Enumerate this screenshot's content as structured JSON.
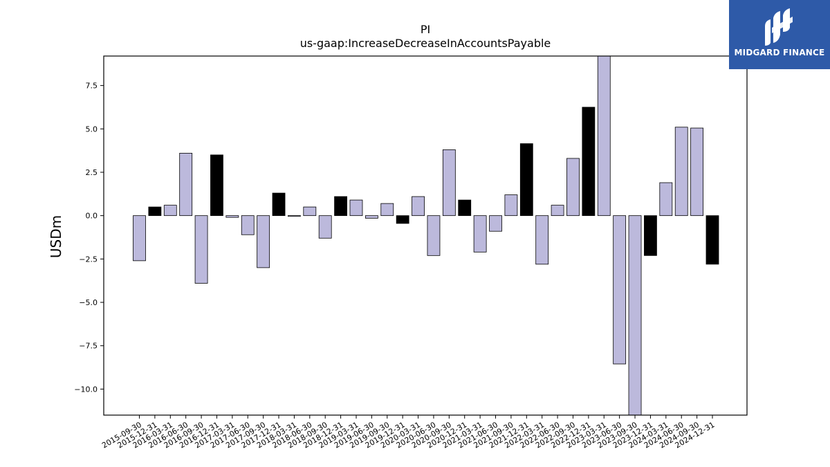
{
  "brand": {
    "name": "MIDGARD FINANCE",
    "logo_icon": "midgard-m-logo-icon",
    "background_color": "#2e5aa8"
  },
  "chart_data": {
    "type": "bar",
    "title": "PI",
    "subtitle": "us-gaap:IncreaseDecreaseInAccountsPayable",
    "xlabel": "",
    "ylabel": "USDm",
    "ylim": [
      -11.5,
      9.2
    ],
    "yticks": [
      7.5,
      5.0,
      2.5,
      0.0,
      -2.5,
      -5.0,
      -7.5,
      -10.0
    ],
    "ytick_labels": [
      "7.5",
      "5.0",
      "2.5",
      "0.0",
      "−2.5",
      "−5.0",
      "−7.5",
      "−10.0"
    ],
    "grid": false,
    "legend": "none",
    "colors": {
      "quarter": "#bcb9dc",
      "year_end": "#000000",
      "edge": "#000000"
    },
    "categories": [
      "2015-09-30",
      "2015-12-31",
      "2016-03-31",
      "2016-06-30",
      "2016-09-30",
      "2016-12-31",
      "2017-03-31",
      "2017-06-30",
      "2017-09-30",
      "2017-12-31",
      "2018-03-31",
      "2018-06-30",
      "2018-09-30",
      "2018-12-31",
      "2019-03-31",
      "2019-06-30",
      "2019-09-30",
      "2019-12-31",
      "2020-03-31",
      "2020-06-30",
      "2020-09-30",
      "2020-12-31",
      "2021-03-31",
      "2021-06-30",
      "2021-09-30",
      "2021-12-31",
      "2022-03-31",
      "2022-06-30",
      "2022-09-30",
      "2022-12-31",
      "2023-03-31",
      "2023-06-30",
      "2023-09-30",
      "2023-12-31",
      "2024-03-31",
      "2024-06-30",
      "2024-09-30",
      "2024-12-31"
    ],
    "values": [
      -2.6,
      0.5,
      0.6,
      3.6,
      -3.9,
      3.5,
      -0.1,
      -1.1,
      -3.0,
      1.3,
      0.0,
      0.5,
      -1.3,
      1.1,
      0.9,
      -0.15,
      0.7,
      -0.45,
      1.1,
      -2.3,
      3.8,
      0.9,
      -2.1,
      -0.9,
      1.2,
      4.15,
      -2.8,
      0.6,
      3.3,
      6.25,
      9.5,
      -8.55,
      -12.0,
      -2.3,
      1.9,
      5.1,
      5.05,
      -2.8
    ]
  }
}
